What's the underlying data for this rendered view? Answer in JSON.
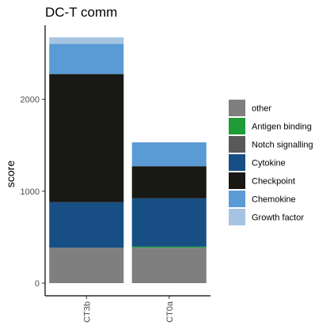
{
  "chart_data": {
    "type": "bar",
    "stacked": true,
    "title": "DC-T comm",
    "xlabel": "",
    "ylabel": "score",
    "categories": [
      "CT3b",
      "CT0a"
    ],
    "ylim": [
      0,
      2700
    ],
    "yticks": [
      0,
      1000,
      2000
    ],
    "ytick_labels": [
      "0",
      "1000",
      "2000"
    ],
    "x_tick_rotation": "vertical",
    "grid": false,
    "legend_position": "right",
    "series": [
      {
        "name": "other",
        "color": "#7f7f7f",
        "values": [
          385,
          385
        ]
      },
      {
        "name": "Antigen binding",
        "color": "#1f9b37",
        "values": [
          0,
          12
        ]
      },
      {
        "name": "Notch signalling",
        "color": "#595959",
        "values": [
          0,
          0
        ]
      },
      {
        "name": "Cytokine",
        "color": "#174f85",
        "values": [
          495,
          525
        ]
      },
      {
        "name": "Checkpoint",
        "color": "#181815",
        "values": [
          1395,
          350
        ]
      },
      {
        "name": "Chemokine",
        "color": "#5b9bd5",
        "values": [
          330,
          260
        ]
      },
      {
        "name": "Growth factor",
        "color": "#a6c4e2",
        "values": [
          70,
          0
        ]
      }
    ]
  }
}
